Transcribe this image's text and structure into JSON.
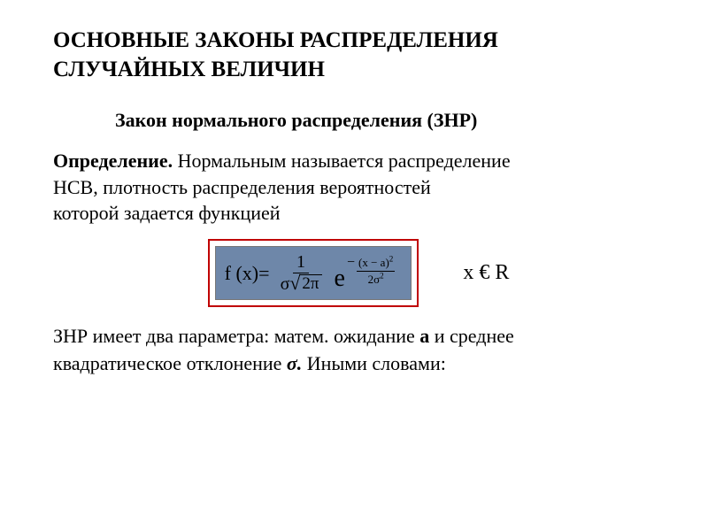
{
  "colors": {
    "text": "#000000",
    "background": "#ffffff",
    "formula_border": "#c00000",
    "formula_fill": "#6e87a9"
  },
  "fonts": {
    "family": "Times New Roman",
    "title_size_pt": 25,
    "subtitle_size_pt": 22,
    "body_size_pt": 22,
    "formula_size_pt": 22,
    "domain_size_pt": 24
  },
  "title": {
    "line1": "ОСНОВНЫЕ ЗАКОНЫ РАСПРЕДЕЛЕНИЯ",
    "line2": "СЛУЧАЙНЫХ ВЕЛИЧИН"
  },
  "subtitle": "Закон нормального распределения (ЗНР)",
  "definition": {
    "label": "Определение.",
    "line1_rest": " Нормальным называется распределение",
    "line2": "НСВ,  плотность распределения  вероятностей",
    "line3": "которой задается функцией"
  },
  "formula": {
    "lhs": "f (x)",
    "equals": "=",
    "coef_num": "1",
    "coef_den_sigma": "σ",
    "coef_den_sqrt_arg": "2π",
    "base": "e",
    "exp_minus": "−",
    "exp_num_l": "(x",
    "exp_num_op": "−",
    "exp_num_r": "a)",
    "exp_num_pow": "2",
    "exp_den_coef": "2σ",
    "exp_den_pow": "2"
  },
  "domain_text": "x € R",
  "footer": {
    "part1": "ЗНР имеет два параметра: матем. ожидание ",
    "param_a": "а",
    "part2": " и среднее",
    "line2_part1": "квадратическое отклонение ",
    "param_sigma": "σ.",
    "line2_part2": " Иными словами:"
  }
}
